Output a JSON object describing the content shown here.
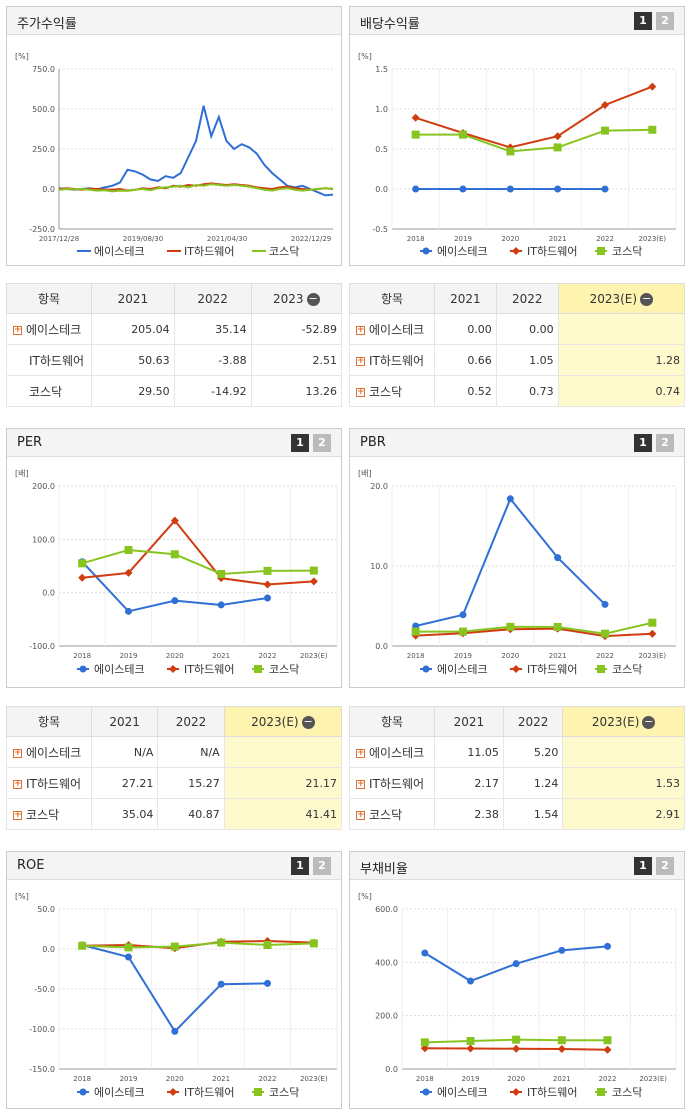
{
  "legend": [
    "에이스테크",
    "IT하드웨어",
    "코스닥"
  ],
  "colors": {
    "s0": "#2f6fd6",
    "s1": "#d03c10",
    "s2": "#88c420"
  },
  "pager": {
    "p1": "1",
    "p2": "2"
  },
  "chart_data": [
    {
      "id": "return",
      "type": "line",
      "title": "주가수익률",
      "unit": "[%]",
      "ylim": [
        -250,
        750
      ],
      "yticks": [
        "750.0",
        "500.0",
        "250.0",
        "0.0",
        "-250.0"
      ],
      "xticks": [
        "2017/12/28",
        "2019/08/30",
        "2021/04/30",
        "2022/12/29"
      ],
      "series": [
        {
          "name": "에이스테크",
          "values": [
            5,
            0,
            -5,
            0,
            5,
            -2,
            10,
            20,
            40,
            120,
            110,
            90,
            60,
            50,
            80,
            70,
            100,
            200,
            300,
            520,
            330,
            450,
            300,
            250,
            280,
            260,
            220,
            150,
            100,
            60,
            20,
            10,
            20,
            0,
            -20,
            -40,
            -35
          ]
        },
        {
          "name": "IT하드웨어",
          "values": [
            0,
            5,
            0,
            -5,
            2,
            0,
            -3,
            -5,
            0,
            -10,
            -5,
            5,
            0,
            10,
            5,
            20,
            15,
            25,
            20,
            30,
            35,
            30,
            25,
            30,
            25,
            20,
            10,
            5,
            0,
            10,
            15,
            5,
            0,
            -5,
            0,
            5,
            0
          ]
        },
        {
          "name": "코스닥",
          "values": [
            -5,
            0,
            -2,
            0,
            -5,
            -10,
            -8,
            -15,
            -10,
            -12,
            -5,
            0,
            -8,
            5,
            10,
            15,
            20,
            10,
            25,
            20,
            30,
            25,
            20,
            25,
            20,
            15,
            5,
            -5,
            -10,
            0,
            5,
            -5,
            -10,
            -5,
            0,
            5,
            2
          ]
        }
      ]
    },
    {
      "id": "dividend",
      "type": "line",
      "title": "배당수익률",
      "unit": "[%]",
      "ylim": [
        -0.5,
        1.5
      ],
      "yticks": [
        "1.5",
        "1.0",
        "0.5",
        "0.0",
        "-0.5"
      ],
      "categories": [
        "2018",
        "2019",
        "2020",
        "2021",
        "2022",
        "2023(E)"
      ],
      "series": [
        {
          "name": "에이스테크",
          "values": [
            0,
            0,
            0,
            0,
            0,
            null
          ]
        },
        {
          "name": "IT하드웨어",
          "values": [
            0.89,
            0.7,
            0.52,
            0.66,
            1.05,
            1.28
          ]
        },
        {
          "name": "코스닥",
          "values": [
            0.68,
            0.68,
            0.47,
            0.52,
            0.73,
            0.74
          ]
        }
      ]
    },
    {
      "id": "per",
      "type": "line",
      "title": "PER",
      "unit": "[배]",
      "ylim": [
        -100,
        200
      ],
      "yticks": [
        "200.0",
        "100.0",
        "0.0",
        "-100.0"
      ],
      "categories": [
        "2018",
        "2019",
        "2020",
        "2021",
        "2022",
        "2023(E)"
      ],
      "series": [
        {
          "name": "에이스테크",
          "values": [
            58,
            -35,
            -15,
            -23,
            -10,
            null
          ]
        },
        {
          "name": "IT하드웨어",
          "values": [
            28,
            37,
            135,
            27.21,
            15.27,
            21.17
          ]
        },
        {
          "name": "코스닥",
          "values": [
            55,
            80,
            72,
            35.04,
            40.87,
            41.41
          ]
        }
      ]
    },
    {
      "id": "pbr",
      "type": "line",
      "title": "PBR",
      "unit": "[배]",
      "ylim": [
        0,
        20
      ],
      "yticks": [
        "20.0",
        "10.0",
        "0.0"
      ],
      "categories": [
        "2018",
        "2019",
        "2020",
        "2021",
        "2022",
        "2023(E)"
      ],
      "series": [
        {
          "name": "에이스테크",
          "values": [
            2.5,
            3.9,
            18.4,
            11.05,
            5.2,
            null
          ]
        },
        {
          "name": "IT하드웨어",
          "values": [
            1.3,
            1.6,
            2.1,
            2.17,
            1.24,
            1.53
          ]
        },
        {
          "name": "코스닥",
          "values": [
            1.8,
            1.8,
            2.4,
            2.38,
            1.54,
            2.91
          ]
        }
      ]
    },
    {
      "id": "roe",
      "type": "line",
      "title": "ROE",
      "unit": "[%]",
      "ylim": [
        -150,
        50
      ],
      "yticks": [
        "50.0",
        "0.0",
        "-50.0",
        "-100.0",
        "-150.0"
      ],
      "categories": [
        "2018",
        "2019",
        "2020",
        "2021",
        "2022",
        "2023(E)"
      ],
      "series": [
        {
          "name": "에이스테크",
          "values": [
            5,
            -10,
            -103,
            -44,
            -43,
            null
          ]
        },
        {
          "name": "IT하드웨어",
          "values": [
            4,
            5,
            1,
            9,
            10,
            8
          ]
        },
        {
          "name": "코스닥",
          "values": [
            4,
            2,
            3,
            8,
            5,
            7
          ]
        }
      ]
    },
    {
      "id": "debt",
      "type": "line",
      "title": "부채비율",
      "unit": "[%]",
      "ylim": [
        0,
        600
      ],
      "yticks": [
        "600.0",
        "400.0",
        "200.0",
        "0.0"
      ],
      "categories": [
        "2018",
        "2019",
        "2020",
        "2021",
        "2022",
        "2023(E)"
      ],
      "series": [
        {
          "name": "에이스테크",
          "values": [
            435,
            330,
            395,
            445,
            460,
            null
          ]
        },
        {
          "name": "IT하드웨어",
          "values": [
            78,
            77,
            76,
            75,
            72,
            null
          ]
        },
        {
          "name": "코스닥",
          "values": [
            100,
            105,
            110,
            108,
            108,
            null
          ]
        }
      ]
    }
  ],
  "tables": {
    "return": {
      "header": [
        "항목",
        "2021",
        "2022",
        "2023"
      ],
      "rows": [
        [
          "에이스테크",
          "205.04",
          "35.14",
          "-52.89"
        ],
        [
          "IT하드웨어",
          "50.63",
          "-3.88",
          "2.51"
        ],
        [
          "코스닥",
          "29.50",
          "-14.92",
          "13.26"
        ]
      ]
    },
    "dividend": {
      "header": [
        "항목",
        "2021",
        "2022",
        "2023(E)"
      ],
      "rows": [
        [
          "에이스테크",
          "0.00",
          "0.00",
          ""
        ],
        [
          "IT하드웨어",
          "0.66",
          "1.05",
          "1.28"
        ],
        [
          "코스닥",
          "0.52",
          "0.73",
          "0.74"
        ]
      ]
    },
    "per": {
      "header": [
        "항목",
        "2021",
        "2022",
        "2023(E)"
      ],
      "rows": [
        [
          "에이스테크",
          "N/A",
          "N/A",
          ""
        ],
        [
          "IT하드웨어",
          "27.21",
          "15.27",
          "21.17"
        ],
        [
          "코스닥",
          "35.04",
          "40.87",
          "41.41"
        ]
      ]
    },
    "pbr": {
      "header": [
        "항목",
        "2021",
        "2022",
        "2023(E)"
      ],
      "rows": [
        [
          "에이스테크",
          "11.05",
          "5.20",
          ""
        ],
        [
          "IT하드웨어",
          "2.17",
          "1.24",
          "1.53"
        ],
        [
          "코스닥",
          "2.38",
          "1.54",
          "2.91"
        ]
      ]
    }
  }
}
